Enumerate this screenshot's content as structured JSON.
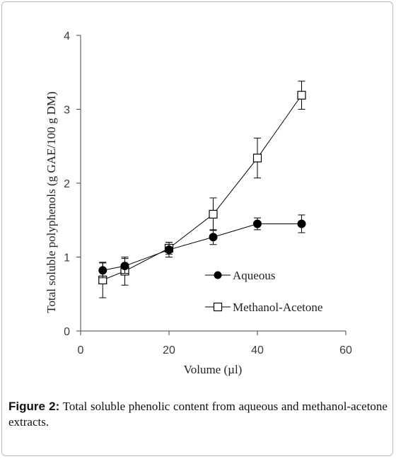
{
  "caption": {
    "label": "Figure 2:",
    "text": "Total soluble phenolic content from aqueous and methanol-acetone extracts."
  },
  "chart_data": {
    "type": "line",
    "title": "",
    "xlabel": "Volume (µl)",
    "ylabel": "Total soluble polyphenols (g GAE/100 g DM)",
    "xlim": [
      0,
      60
    ],
    "ylim": [
      0,
      4
    ],
    "xticks": [
      0,
      20,
      40,
      60
    ],
    "yticks": [
      0,
      1,
      2,
      3,
      4
    ],
    "grid": false,
    "legend_position": "lower-right",
    "series": [
      {
        "name": "Aqueous",
        "marker": "filled-circle",
        "color": "#000000",
        "x": [
          5,
          10,
          20,
          30,
          40,
          50
        ],
        "y": [
          0.82,
          0.88,
          1.1,
          1.27,
          1.45,
          1.45
        ],
        "err": [
          0.1,
          0.1,
          0.1,
          0.1,
          0.08,
          0.12
        ]
      },
      {
        "name": "Methanol-Acetone",
        "marker": "open-square",
        "color": "#000000",
        "x": [
          5,
          10,
          20,
          30,
          40,
          50
        ],
        "y": [
          0.69,
          0.81,
          1.12,
          1.58,
          2.34,
          3.19
        ],
        "err": [
          0.24,
          0.19,
          0.08,
          0.22,
          0.27,
          0.19
        ]
      }
    ]
  }
}
